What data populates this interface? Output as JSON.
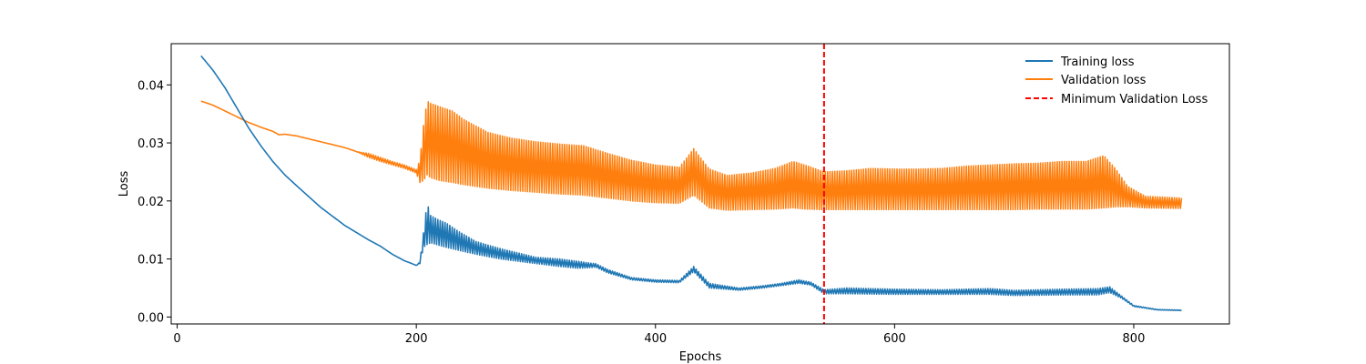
{
  "chart_data": {
    "type": "line",
    "title": "",
    "xlabel": "Epochs",
    "ylabel": "Loss",
    "xlim": [
      -5,
      880
    ],
    "ylim": [
      -0.0012,
      0.0471
    ],
    "xticks": [
      0,
      200,
      400,
      600,
      800
    ],
    "xtick_labels": [
      "0",
      "200",
      "400",
      "600",
      "800"
    ],
    "yticks": [
      0.0,
      0.01,
      0.02,
      0.03,
      0.04
    ],
    "ytick_labels": [
      "0.00",
      "0.01",
      "0.02",
      "0.03",
      "0.04"
    ],
    "grid": false,
    "legend_position": "top-right",
    "min_validation_epoch": 541,
    "series": [
      {
        "name": "Training loss",
        "color": "#1f77b4",
        "style": "solid",
        "envelope_note": "upper/lower envelope of oscillating curve",
        "x": [
          20,
          30,
          40,
          50,
          60,
          70,
          80,
          90,
          100,
          120,
          140,
          160,
          170,
          180,
          190,
          200,
          203,
          206,
          209,
          212,
          218,
          225,
          235,
          250,
          270,
          300,
          320,
          335,
          345,
          350,
          360,
          380,
          400,
          420,
          432,
          445,
          470,
          490,
          505,
          520,
          530,
          541,
          560,
          600,
          640,
          680,
          700,
          740,
          770,
          780,
          790,
          800,
          820,
          840
        ],
        "upper": [
          0.045,
          0.0425,
          0.0395,
          0.036,
          0.0325,
          0.0295,
          0.0268,
          0.0245,
          0.0226,
          0.0189,
          0.0158,
          0.0133,
          0.0122,
          0.0108,
          0.0097,
          0.0089,
          0.0095,
          0.0145,
          0.0197,
          0.0175,
          0.0168,
          0.0162,
          0.0148,
          0.013,
          0.0118,
          0.0103,
          0.01,
          0.0096,
          0.0093,
          0.0092,
          0.0082,
          0.0068,
          0.0064,
          0.0063,
          0.0087,
          0.0058,
          0.005,
          0.0054,
          0.0058,
          0.0064,
          0.006,
          0.0047,
          0.005,
          0.0048,
          0.0047,
          0.0049,
          0.0046,
          0.0048,
          0.0049,
          0.0052,
          0.0036,
          0.002,
          0.0013,
          0.0012
        ],
        "lower": [
          0.045,
          0.0425,
          0.0395,
          0.036,
          0.0325,
          0.0295,
          0.0268,
          0.0245,
          0.0226,
          0.0189,
          0.0158,
          0.0133,
          0.0122,
          0.0108,
          0.0097,
          0.0089,
          0.0092,
          0.012,
          0.0125,
          0.0128,
          0.0124,
          0.012,
          0.0115,
          0.0108,
          0.01,
          0.0092,
          0.0087,
          0.0084,
          0.0085,
          0.0086,
          0.0076,
          0.0064,
          0.006,
          0.0059,
          0.0078,
          0.005,
          0.0046,
          0.005,
          0.0054,
          0.0058,
          0.0055,
          0.004,
          0.004,
          0.0039,
          0.0039,
          0.0039,
          0.0037,
          0.0038,
          0.0038,
          0.0042,
          0.0032,
          0.0018,
          0.0012,
          0.0011
        ]
      },
      {
        "name": "Validation loss",
        "color": "#ff7f0e",
        "style": "solid",
        "envelope_note": "upper/lower envelope of oscillating curve",
        "x": [
          20,
          30,
          40,
          50,
          60,
          70,
          80,
          85,
          90,
          100,
          110,
          120,
          130,
          140,
          150,
          160,
          170,
          180,
          190,
          200,
          203,
          206,
          209,
          212,
          220,
          230,
          240,
          260,
          280,
          300,
          320,
          340,
          360,
          380,
          400,
          420,
          432,
          445,
          460,
          480,
          500,
          515,
          525,
          541,
          560,
          580,
          600,
          620,
          640,
          660,
          680,
          700,
          720,
          740,
          760,
          775,
          785,
          795,
          810,
          840
        ],
        "upper": [
          0.0372,
          0.0365,
          0.0355,
          0.0345,
          0.0335,
          0.0327,
          0.032,
          0.0314,
          0.0315,
          0.0312,
          0.0307,
          0.0302,
          0.0297,
          0.0292,
          0.0285,
          0.0282,
          0.0275,
          0.0268,
          0.0262,
          0.0254,
          0.027,
          0.033,
          0.0372,
          0.0368,
          0.0362,
          0.0355,
          0.034,
          0.0318,
          0.0308,
          0.0302,
          0.0298,
          0.0295,
          0.0282,
          0.027,
          0.0262,
          0.0258,
          0.029,
          0.0255,
          0.0244,
          0.0248,
          0.0256,
          0.0268,
          0.0262,
          0.025,
          0.0252,
          0.0256,
          0.0255,
          0.0255,
          0.0256,
          0.026,
          0.0262,
          0.0264,
          0.0265,
          0.0268,
          0.0268,
          0.0278,
          0.0255,
          0.0225,
          0.0208,
          0.0205
        ],
        "lower": [
          0.0372,
          0.0365,
          0.0355,
          0.0345,
          0.0335,
          0.0327,
          0.032,
          0.0314,
          0.0315,
          0.0312,
          0.0307,
          0.0302,
          0.0297,
          0.0292,
          0.0285,
          0.0275,
          0.0268,
          0.0262,
          0.0256,
          0.0248,
          0.0232,
          0.0235,
          0.0245,
          0.024,
          0.0235,
          0.0232,
          0.0228,
          0.0222,
          0.0218,
          0.0215,
          0.0212,
          0.021,
          0.0205,
          0.02,
          0.0197,
          0.0196,
          0.021,
          0.0188,
          0.0184,
          0.0185,
          0.0186,
          0.0188,
          0.0186,
          0.0185,
          0.0185,
          0.0185,
          0.0185,
          0.0185,
          0.0185,
          0.0185,
          0.0185,
          0.0185,
          0.0186,
          0.0186,
          0.0186,
          0.0188,
          0.019,
          0.019,
          0.0188,
          0.0187
        ]
      }
    ],
    "annotations": [
      {
        "name": "Minimum Validation Loss",
        "type": "vline",
        "x": 541,
        "color": "#ff0000",
        "style": "dashed"
      }
    ]
  }
}
